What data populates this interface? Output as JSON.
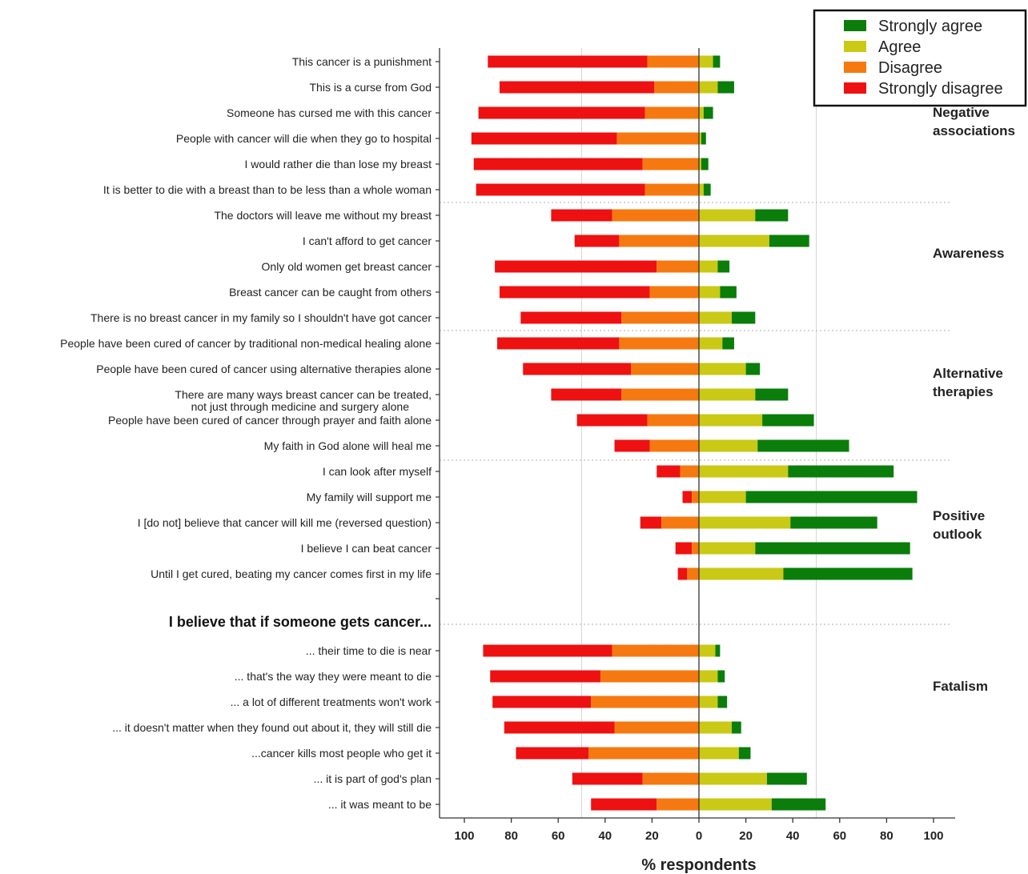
{
  "colors": {
    "strongly_agree": "#0a7d0a",
    "agree": "#c9c916",
    "disagree": "#f57910",
    "strongly_disagree": "#ee1111"
  },
  "chart_data": {
    "type": "bar",
    "orientation": "horizontal-diverging",
    "xlabel": "% respondents",
    "ylabel": "",
    "xticks": [
      "100",
      "80",
      "60",
      "40",
      "20",
      "0",
      "20",
      "40",
      "60",
      "80",
      "100"
    ],
    "xlim": [
      -100,
      100
    ],
    "grid_x": [
      -50,
      50
    ],
    "legend": {
      "placement": "top-right",
      "entries": [
        "Strongly agree",
        "Agree",
        "Disagree",
        "Strongly disagree"
      ]
    },
    "heading": "I believe that if someone gets cancer...",
    "groups": [
      {
        "name": "Negative associations",
        "label_lines": [
          "Negative",
          "associations"
        ]
      },
      {
        "name": "Awareness",
        "label_lines": [
          "Awareness"
        ]
      },
      {
        "name": "Alternative therapies",
        "label_lines": [
          "Alternative",
          "therapies"
        ]
      },
      {
        "name": "Positive outlook",
        "label_lines": [
          "Positive",
          "outlook"
        ]
      },
      {
        "name": "Fatalism",
        "label_lines": [
          "Fatalism"
        ]
      }
    ],
    "rows": [
      {
        "group": "Negative associations",
        "label": "This cancer is a punishment",
        "strongly_disagree": 68,
        "disagree": 22,
        "agree": 6,
        "strongly_agree": 3
      },
      {
        "group": "Negative associations",
        "label": "This is a curse from God",
        "strongly_disagree": 66,
        "disagree": 19,
        "agree": 8,
        "strongly_agree": 7
      },
      {
        "group": "Negative associations",
        "label": "Someone has cursed me with this cancer",
        "strongly_disagree": 71,
        "disagree": 23,
        "agree": 2,
        "strongly_agree": 4
      },
      {
        "group": "Negative associations",
        "label": "People with cancer will die when they go to hospital",
        "strongly_disagree": 62,
        "disagree": 35,
        "agree": 1,
        "strongly_agree": 2
      },
      {
        "group": "Negative associations",
        "label": "I would rather die than lose my breast",
        "strongly_disagree": 72,
        "disagree": 24,
        "agree": 1,
        "strongly_agree": 3
      },
      {
        "group": "Negative associations",
        "label": "It is better to die with a breast than to be less than a whole woman",
        "strongly_disagree": 72,
        "disagree": 23,
        "agree": 2,
        "strongly_agree": 3
      },
      {
        "group": "Awareness",
        "label": "The doctors will leave me without my breast",
        "strongly_disagree": 26,
        "disagree": 37,
        "agree": 24,
        "strongly_agree": 14
      },
      {
        "group": "Awareness",
        "label": "I can't afford to get cancer",
        "strongly_disagree": 19,
        "disagree": 34,
        "agree": 30,
        "strongly_agree": 17
      },
      {
        "group": "Awareness",
        "label": "Only old women get breast cancer",
        "strongly_disagree": 69,
        "disagree": 18,
        "agree": 8,
        "strongly_agree": 5
      },
      {
        "group": "Awareness",
        "label": "Breast cancer can be caught from others",
        "strongly_disagree": 64,
        "disagree": 21,
        "agree": 9,
        "strongly_agree": 7
      },
      {
        "group": "Awareness",
        "label": "There is no breast cancer in my family so I shouldn't have got cancer",
        "strongly_disagree": 43,
        "disagree": 33,
        "agree": 14,
        "strongly_agree": 10
      },
      {
        "group": "Alternative therapies",
        "label": "People have been cured of cancer by traditional non-medical healing alone",
        "strongly_disagree": 52,
        "disagree": 34,
        "agree": 10,
        "strongly_agree": 5
      },
      {
        "group": "Alternative therapies",
        "label": "People have been cured of cancer using alternative therapies alone",
        "strongly_disagree": 46,
        "disagree": 29,
        "agree": 20,
        "strongly_agree": 6
      },
      {
        "group": "Alternative therapies",
        "label": "There are many ways breast cancer can be treated, not just through medicine and surgery alone",
        "label_lines": [
          "There are many ways breast cancer can be treated,",
          "not just through medicine and surgery alone"
        ],
        "strongly_disagree": 30,
        "disagree": 33,
        "agree": 24,
        "strongly_agree": 14
      },
      {
        "group": "Alternative therapies",
        "label": "People have been cured of cancer through prayer and faith alone",
        "strongly_disagree": 30,
        "disagree": 22,
        "agree": 27,
        "strongly_agree": 22
      },
      {
        "group": "Alternative therapies",
        "label": "My faith in God alone will heal me",
        "strongly_disagree": 15,
        "disagree": 21,
        "agree": 25,
        "strongly_agree": 39
      },
      {
        "group": "Positive outlook",
        "label": "I can look after myself",
        "strongly_disagree": 10,
        "disagree": 8,
        "agree": 38,
        "strongly_agree": 45
      },
      {
        "group": "Positive outlook",
        "label": "My family will support me",
        "strongly_disagree": 4,
        "disagree": 3,
        "agree": 20,
        "strongly_agree": 73
      },
      {
        "group": "Positive outlook",
        "label": "I [do not] believe that cancer will kill me (reversed question)",
        "strongly_disagree": 9,
        "disagree": 16,
        "agree": 39,
        "strongly_agree": 37
      },
      {
        "group": "Positive outlook",
        "label": "I believe I can beat cancer",
        "strongly_disagree": 7,
        "disagree": 3,
        "agree": 24,
        "strongly_agree": 66
      },
      {
        "group": "Positive outlook",
        "label": "Until I get cured, beating my cancer comes first in my life",
        "strongly_disagree": 4,
        "disagree": 5,
        "agree": 36,
        "strongly_agree": 55
      },
      {
        "group": "Fatalism",
        "label": "... their time to die is near",
        "strongly_disagree": 55,
        "disagree": 37,
        "agree": 7,
        "strongly_agree": 2
      },
      {
        "group": "Fatalism",
        "label": "... that's the way they were meant to die",
        "strongly_disagree": 47,
        "disagree": 42,
        "agree": 8,
        "strongly_agree": 3
      },
      {
        "group": "Fatalism",
        "label": "... a lot of different treatments won't work",
        "strongly_disagree": 42,
        "disagree": 46,
        "agree": 8,
        "strongly_agree": 4
      },
      {
        "group": "Fatalism",
        "label": "... it doesn't matter when they found out about it, they will still die",
        "strongly_disagree": 47,
        "disagree": 36,
        "agree": 14,
        "strongly_agree": 4
      },
      {
        "group": "Fatalism",
        "label": "...cancer kills most people who get it",
        "strongly_disagree": 31,
        "disagree": 47,
        "agree": 17,
        "strongly_agree": 5
      },
      {
        "group": "Fatalism",
        "label": "... it is part of god's plan",
        "strongly_disagree": 30,
        "disagree": 24,
        "agree": 29,
        "strongly_agree": 17
      },
      {
        "group": "Fatalism",
        "label": "... it was meant to be",
        "strongly_disagree": 28,
        "disagree": 18,
        "agree": 31,
        "strongly_agree": 23
      }
    ]
  }
}
